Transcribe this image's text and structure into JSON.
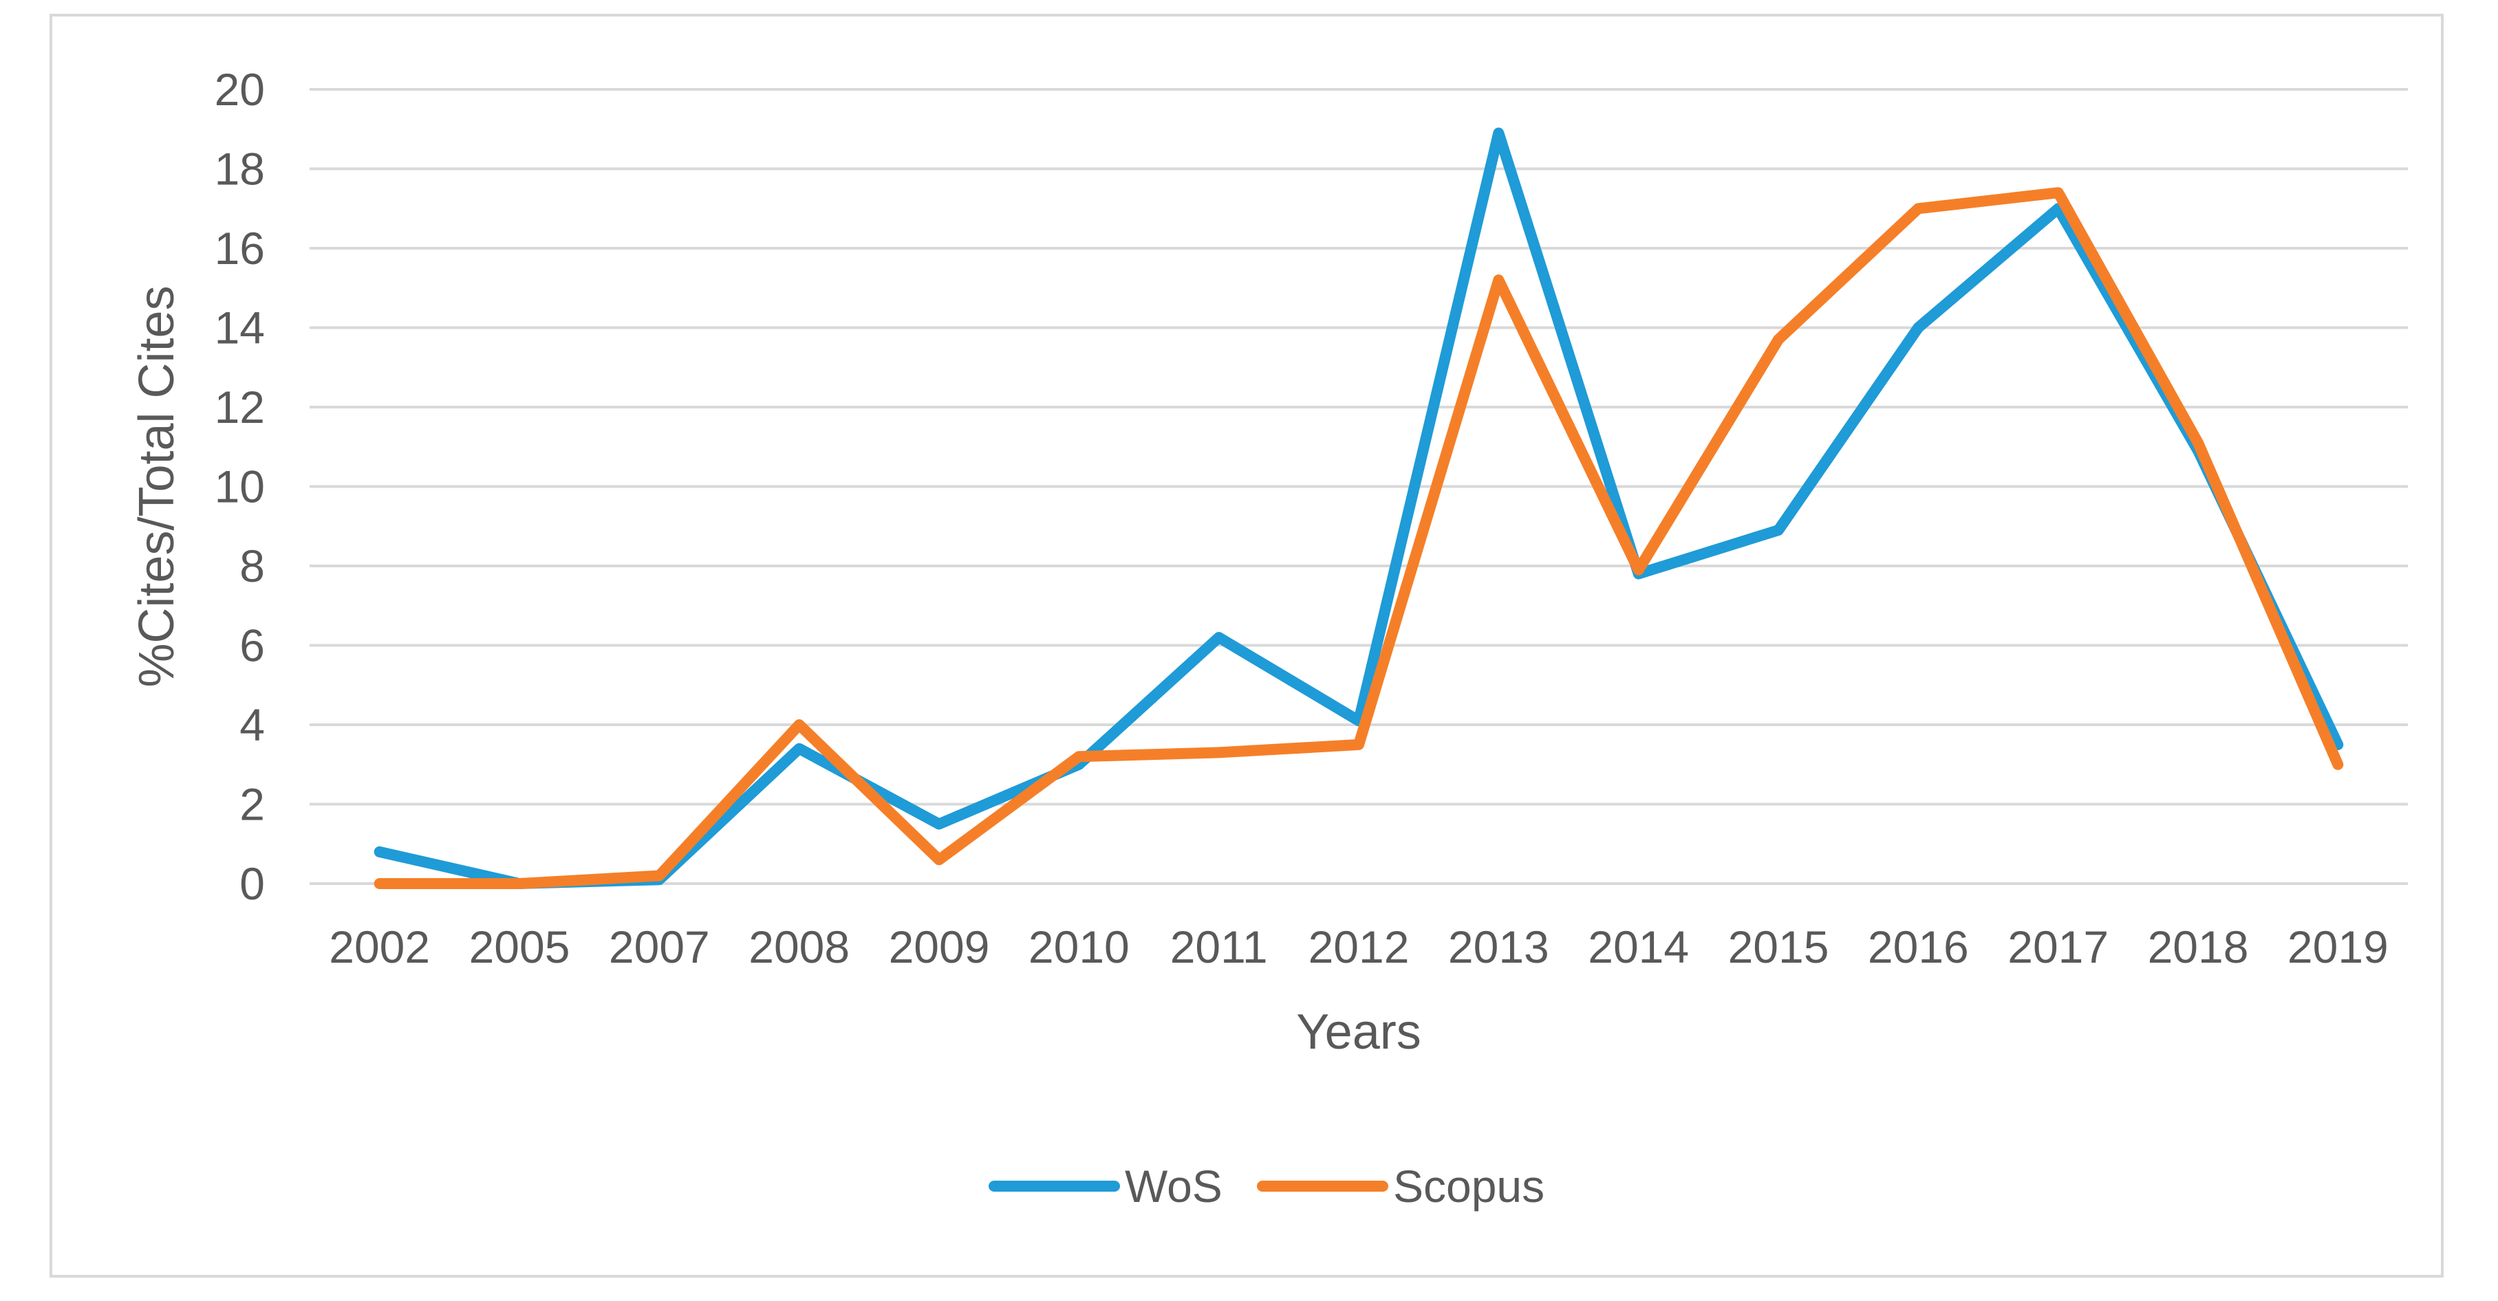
{
  "chart_data": {
    "type": "line",
    "title": "",
    "xlabel": "Years",
    "ylabel": "%Cites/Total Cites",
    "categories": [
      "2002",
      "2005",
      "2007",
      "2008",
      "2009",
      "2010",
      "2011",
      "2012",
      "2013",
      "2014",
      "2015",
      "2016",
      "2017",
      "2018",
      "2019"
    ],
    "ylim": [
      0,
      20
    ],
    "yticks": [
      0,
      2,
      4,
      6,
      8,
      10,
      12,
      14,
      16,
      18,
      20
    ],
    "grid": true,
    "legend_position": "bottom",
    "series": [
      {
        "name": "WoS",
        "color": "#1f9bd7",
        "values": [
          0.8,
          0.0,
          0.1,
          3.4,
          1.5,
          3.0,
          6.2,
          4.1,
          18.9,
          7.8,
          8.9,
          14.0,
          17.0,
          10.9,
          3.5
        ]
      },
      {
        "name": "Scopus",
        "color": "#f57f28",
        "values": [
          0.0,
          0.0,
          0.2,
          4.0,
          0.6,
          3.2,
          3.3,
          3.5,
          15.2,
          7.9,
          13.7,
          17.0,
          17.4,
          11.1,
          3.0
        ]
      }
    ]
  },
  "colors": {
    "grid": "#d9d9d9",
    "text": "#595959",
    "frame": "#d9d9d9"
  }
}
